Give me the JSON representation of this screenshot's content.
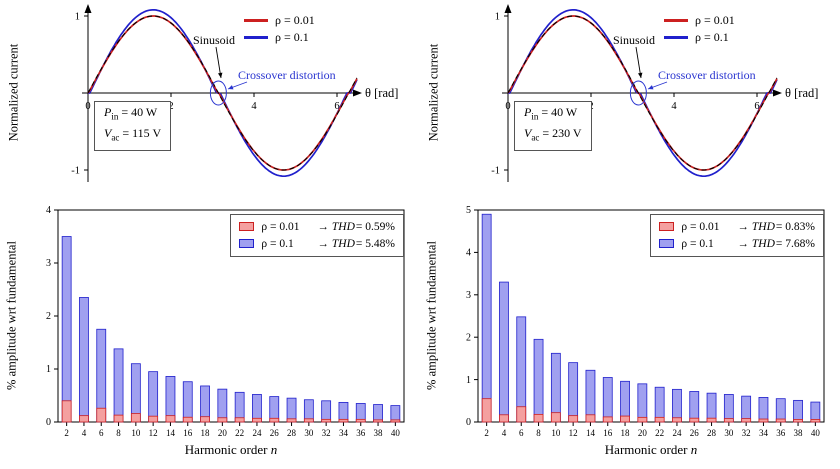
{
  "colors": {
    "red": "#cc2020",
    "blue": "#2020cc",
    "annotation_blue": "#2a35d0",
    "bar_red_fill": "#f4a0a0",
    "bar_blue_fill": "#a0a0f0",
    "axis": "#000000",
    "background": "#ffffff"
  },
  "chart_data": [
    {
      "type": "line",
      "ylabel": "Normalized current",
      "xlabel": "θ [rad]",
      "x_range_rad": [
        0,
        6.5
      ],
      "xticks": [
        0,
        2,
        4,
        6
      ],
      "yticks": [
        1,
        -1
      ],
      "series": [
        {
          "name": "ρ = 0.01",
          "color_key": "red",
          "amplitude": 1.0,
          "crossover_deadband": 0.012
        },
        {
          "name": "ρ = 0.1",
          "color_key": "blue",
          "amplitude": 1.08,
          "crossover_deadband": 0.05
        },
        {
          "name": "Sinusoid",
          "color_key": "black_dashed",
          "amplitude": 1.0,
          "crossover_deadband": 0
        }
      ],
      "legend": [
        {
          "label": "ρ = 0.01",
          "color_key": "red"
        },
        {
          "label": "ρ = 0.1",
          "color_key": "blue"
        }
      ],
      "annotations": {
        "sinusoid": "Sinusoid",
        "crossover": "Crossover distortion"
      },
      "param_box": {
        "p_sym": "P",
        "p_sub": "in",
        "p_rest": " = 40 W",
        "v_sym": "V",
        "v_sub": "ac",
        "v_rest": " = 115 V"
      }
    },
    {
      "type": "line",
      "ylabel": "Normalized current",
      "xlabel": "θ [rad]",
      "x_range_rad": [
        0,
        6.5
      ],
      "xticks": [
        0,
        2,
        4,
        6
      ],
      "yticks": [
        1,
        -1
      ],
      "series": [
        {
          "name": "ρ = 0.01",
          "color_key": "red",
          "amplitude": 1.0,
          "crossover_deadband": 0.012
        },
        {
          "name": "ρ = 0.1",
          "color_key": "blue",
          "amplitude": 1.08,
          "crossover_deadband": 0.05
        },
        {
          "name": "Sinusoid",
          "color_key": "black_dashed",
          "amplitude": 1.0,
          "crossover_deadband": 0
        }
      ],
      "legend": [
        {
          "label": "ρ = 0.01",
          "color_key": "red"
        },
        {
          "label": "ρ = 0.1",
          "color_key": "blue"
        }
      ],
      "annotations": {
        "sinusoid": "Sinusoid",
        "crossover": "Crossover distortion"
      },
      "param_box": {
        "p_sym": "P",
        "p_sub": "in",
        "p_rest": " = 40 W",
        "v_sym": "V",
        "v_sub": "ac",
        "v_rest": " = 230 V"
      }
    },
    {
      "type": "bar",
      "ylabel": "% amplitude wrt fundamental",
      "xlabel": {
        "text": "Harmonic order ",
        "italic": "n"
      },
      "categories": [
        2,
        4,
        6,
        8,
        10,
        12,
        14,
        16,
        18,
        20,
        22,
        24,
        26,
        28,
        30,
        32,
        34,
        36,
        38,
        40
      ],
      "series": [
        {
          "name": "ρ = 0.01",
          "color_key": "red",
          "values": [
            0.4,
            0.12,
            0.26,
            0.13,
            0.16,
            0.11,
            0.12,
            0.09,
            0.1,
            0.08,
            0.08,
            0.07,
            0.07,
            0.06,
            0.06,
            0.05,
            0.05,
            0.05,
            0.04,
            0.04
          ]
        },
        {
          "name": "ρ = 0.1",
          "color_key": "blue",
          "values": [
            3.5,
            2.35,
            1.75,
            1.38,
            1.1,
            0.95,
            0.86,
            0.76,
            0.68,
            0.62,
            0.56,
            0.52,
            0.48,
            0.45,
            0.42,
            0.4,
            0.37,
            0.35,
            0.33,
            0.31
          ]
        }
      ],
      "legend": [
        {
          "color_key": "red",
          "rho": "ρ = 0.01",
          "arrow": "→",
          "thd": "THD",
          "value": " = 0.59%"
        },
        {
          "color_key": "blue",
          "rho": "ρ = 0.1",
          "arrow": "→",
          "thd": "THD",
          "value": " = 5.48%"
        }
      ],
      "ylim": [
        0,
        4
      ],
      "yticks": [
        0,
        1,
        2,
        3,
        4
      ]
    },
    {
      "type": "bar",
      "ylabel": "% amplitude wrt fundamental",
      "xlabel": {
        "text": "Harmonic order ",
        "italic": "n"
      },
      "categories": [
        2,
        4,
        6,
        8,
        10,
        12,
        14,
        16,
        18,
        20,
        22,
        24,
        26,
        28,
        30,
        32,
        34,
        36,
        38,
        40
      ],
      "series": [
        {
          "name": "ρ = 0.01",
          "color_key": "red",
          "values": [
            0.55,
            0.17,
            0.36,
            0.18,
            0.22,
            0.15,
            0.17,
            0.12,
            0.14,
            0.11,
            0.11,
            0.1,
            0.09,
            0.09,
            0.08,
            0.08,
            0.07,
            0.07,
            0.06,
            0.06
          ]
        },
        {
          "name": "ρ = 0.1",
          "color_key": "blue",
          "values": [
            4.9,
            3.3,
            2.48,
            1.95,
            1.62,
            1.4,
            1.22,
            1.05,
            0.96,
            0.9,
            0.82,
            0.77,
            0.72,
            0.68,
            0.65,
            0.61,
            0.58,
            0.55,
            0.51,
            0.47
          ]
        }
      ],
      "legend": [
        {
          "color_key": "red",
          "rho": "ρ = 0.01",
          "arrow": "→",
          "thd": "THD",
          "value": " = 0.83%"
        },
        {
          "color_key": "blue",
          "rho": "ρ = 0.1",
          "arrow": "→",
          "thd": "THD",
          "value": " = 7.68%"
        }
      ],
      "ylim": [
        0,
        5
      ],
      "yticks": [
        0,
        1,
        2,
        3,
        4,
        5
      ]
    }
  ]
}
